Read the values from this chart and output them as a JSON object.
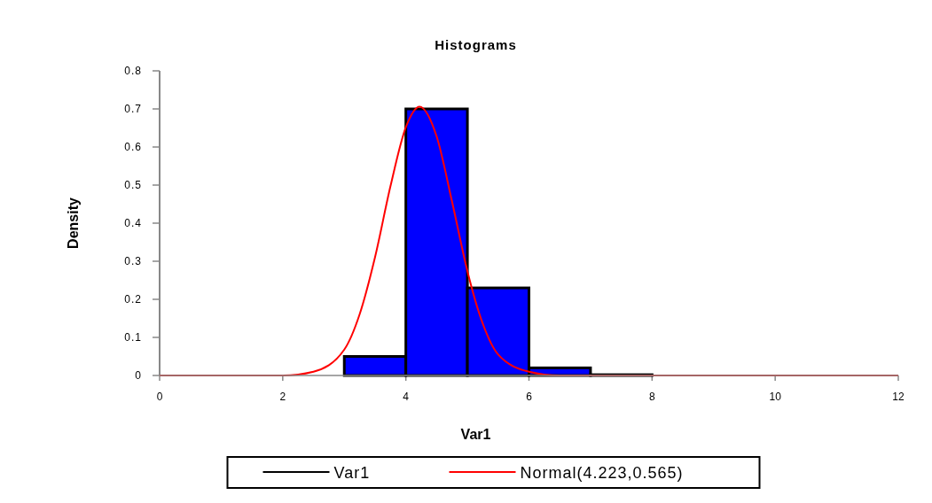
{
  "chart_data": {
    "type": "histogram",
    "title": "Histograms",
    "xlabel": "Var1",
    "ylabel": "Density",
    "xlim": [
      0,
      12
    ],
    "xticks": [
      0,
      2,
      4,
      6,
      8,
      10,
      12
    ],
    "ylim": [
      0,
      0.8
    ],
    "yticks": [
      0,
      0.1,
      0.2,
      0.3,
      0.4,
      0.5,
      0.6,
      0.7,
      0.8
    ],
    "legend": "bottom",
    "grid": false,
    "series": [
      {
        "name": "Var1",
        "color": "#0000ff",
        "bins": [
          3,
          4,
          5,
          6,
          7,
          8
        ],
        "values": [
          0.05,
          0.7,
          0.23,
          0.02,
          0.002
        ]
      },
      {
        "name": "Normal(4.223,0.565)",
        "type": "line",
        "color": "#ff0000",
        "x": [
          0,
          2,
          2.5,
          3,
          3.25,
          3.5,
          3.75,
          4,
          4.223,
          4.5,
          4.75,
          5,
          5.25,
          5.5,
          6,
          6.5,
          7,
          12
        ],
        "values": [
          0,
          0,
          0.01,
          0.068,
          0.161,
          0.311,
          0.497,
          0.652,
          0.706,
          0.628,
          0.457,
          0.274,
          0.136,
          0.055,
          0.01,
          0,
          0,
          0
        ]
      }
    ]
  }
}
